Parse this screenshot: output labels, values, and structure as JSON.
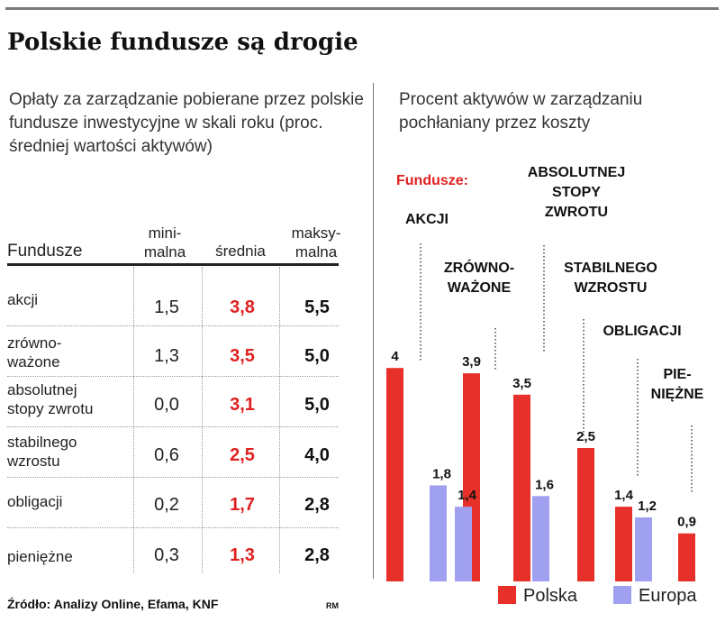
{
  "title": "Polskie fundusze są drogie",
  "left_subtitle": "Opłaty za zarządzanie pobierane przez polskie fundusze inwestycyjne w skali roku (proc. średniej wartości aktywów)",
  "right_subtitle": "Procent aktywów w zarządzaniu pochłaniany przez koszty",
  "table": {
    "headers": {
      "fund": "Fundusze",
      "min": "mini-\nmalna",
      "avg": "średnia",
      "max": "maksy-\nmalna"
    },
    "rows": [
      {
        "label": "akcji",
        "min": "1,5",
        "avg": "3,8",
        "max": "5,5"
      },
      {
        "label": "zrówno-\nważone",
        "min": "1,3",
        "avg": "3,5",
        "max": "5,0"
      },
      {
        "label": "absolutnej\nstopy zwrotu",
        "min": "0,0",
        "avg": "3,1",
        "max": "5,0"
      },
      {
        "label": "stabilnego\nwzrostu",
        "min": "0,6",
        "avg": "2,5",
        "max": "4,0"
      },
      {
        "label": "obligacji",
        "min": "0,2",
        "avg": "1,7",
        "max": "2,8"
      },
      {
        "label": "pieniężne",
        "min": "0,3",
        "avg": "1,3",
        "max": "2,8"
      }
    ]
  },
  "source": "Źródło: Analizy Online, Efama, KNF",
  "source_initials": "RM",
  "colors": {
    "polska": "#e8302a",
    "europa": "#a0a0f0",
    "accent_red": "#e02020"
  },
  "chart_data": {
    "type": "bar",
    "group_heading": "Fundusze:",
    "categories": [
      "AKCJI",
      "ZRÓWNO-\nWAŻONE",
      "ABSOLUTNEJ\nSTOPY\nZWROTU",
      "STABILNEGO\nWZROSTU",
      "OBLIGACJI",
      "PIE-\nNIĘŻNE"
    ],
    "series": [
      {
        "name": "Polska",
        "values": [
          4,
          3.9,
          3.5,
          2.5,
          1.4,
          0.9
        ],
        "labels": [
          "4",
          "3,9",
          "3,5",
          "2,5",
          "1,4",
          "0,9"
        ]
      },
      {
        "name": "Europa",
        "values": [
          1.8,
          1.4,
          1.6,
          null,
          1.2,
          null
        ],
        "labels": [
          "1,8",
          "1,4",
          "1,6",
          "",
          "1,2",
          ""
        ]
      }
    ],
    "ylim": [
      0,
      4.2
    ],
    "grid": false,
    "legend": "bottom"
  }
}
